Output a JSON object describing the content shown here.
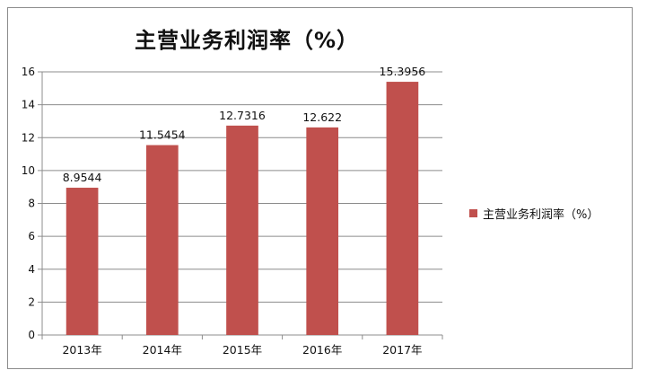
{
  "chart_data": {
    "type": "bar",
    "title": "主营业务利润率（%）",
    "categories": [
      "2013年",
      "2014年",
      "2015年",
      "2016年",
      "2017年"
    ],
    "series": [
      {
        "name": "主营业务利润率（%）",
        "values": [
          8.9544,
          11.5454,
          12.7316,
          12.622,
          15.3956
        ],
        "labels": [
          "8.9544",
          "11.5454",
          "12.7316",
          "12.622",
          "15.3956"
        ]
      }
    ],
    "ylim": [
      0,
      16
    ],
    "yticks": [
      0,
      2,
      4,
      6,
      8,
      10,
      12,
      14,
      16
    ],
    "grid": true,
    "legend": "right",
    "colors": {
      "bar": "#c0504d",
      "grid": "#8c8c8c",
      "axis": "#8c8c8c"
    }
  }
}
